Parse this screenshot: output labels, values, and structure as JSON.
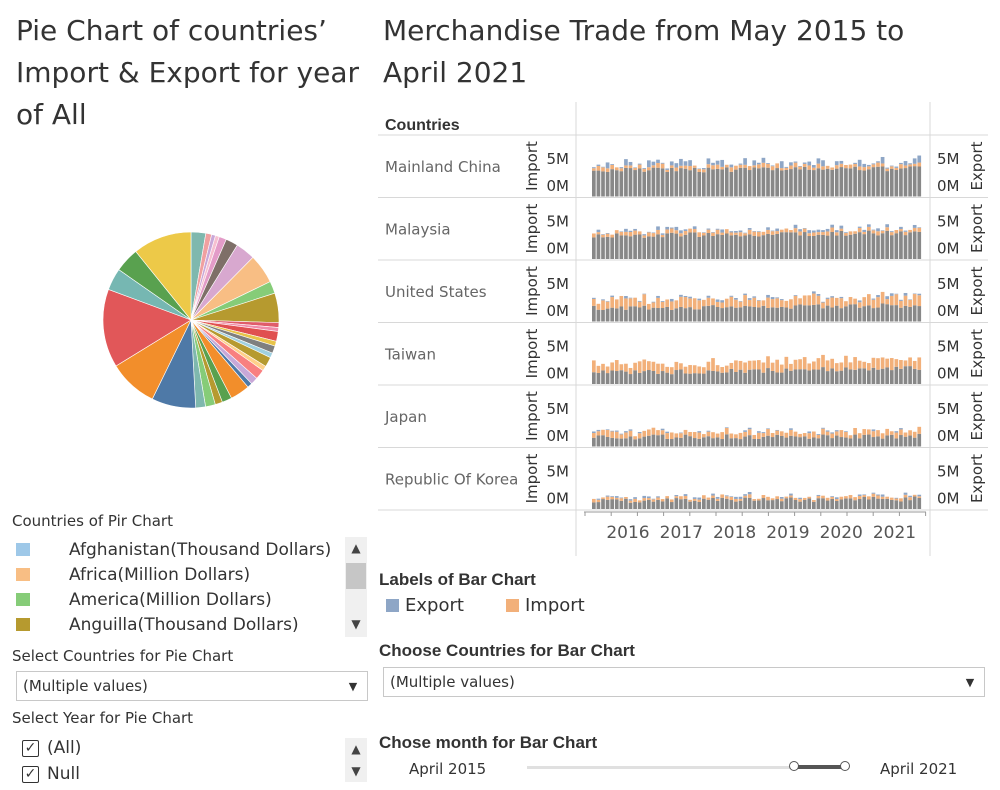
{
  "pie_title": [
    "Pie Chart of countries’",
    "Import & Export for year",
    "of All"
  ],
  "bar_title": [
    "Merchandise Trade from May 2015 to",
    "April 2021"
  ],
  "countries_header": "Countries",
  "rows": [
    {
      "label": "Mainland China",
      "seed": 1,
      "imp": 0.08,
      "exp": 0.12,
      "base": 0.62,
      "trend": 0.05
    },
    {
      "label": "Malaysia",
      "seed": 2,
      "imp": 0.08,
      "exp": 0.06,
      "base": 0.55,
      "trend": 0.08
    },
    {
      "label": "United States",
      "seed": 3,
      "imp": 0.2,
      "exp": 0.05,
      "base": 0.32,
      "trend": 0.06
    },
    {
      "label": "Taiwan",
      "seed": 4,
      "imp": 0.22,
      "exp": 0.0,
      "base": 0.26,
      "trend": 0.12
    },
    {
      "label": "Japan",
      "seed": 5,
      "imp": 0.12,
      "exp": 0.03,
      "base": 0.22,
      "trend": 0.03
    },
    {
      "label": "Republic Of Korea",
      "seed": 6,
      "imp": 0.06,
      "exp": 0.04,
      "base": 0.2,
      "trend": 0.04
    }
  ],
  "axis": {
    "left_title": "Import",
    "right_title": "Export",
    "tick_5m": "5M",
    "tick_0m": "0M",
    "years": [
      "2016",
      "2017",
      "2018",
      "2019",
      "2020",
      "2021"
    ]
  },
  "colors": {
    "export": "#8ea6c6",
    "import": "#f2b07a",
    "base": "#888888"
  },
  "pie_legend": {
    "title": "Countries of Pir Chart",
    "items": [
      {
        "label": "Afghanistan(Thousand Dollars)",
        "color": "#9ec8e8"
      },
      {
        "label": "Africa(Million Dollars)",
        "color": "#f8be84"
      },
      {
        "label": "America(Million Dollars)",
        "color": "#86cc78"
      },
      {
        "label": "Anguilla(Thousand Dollars)",
        "color": "#b69a2f"
      }
    ]
  },
  "pie_slices": [
    {
      "v": 3,
      "c": "#7fb8ae"
    },
    {
      "v": 1.2,
      "c": "#f0a0a0"
    },
    {
      "v": 0.8,
      "c": "#c9a7d8"
    },
    {
      "v": 0.8,
      "c": "#f6c0d0"
    },
    {
      "v": 1.5,
      "c": "#e39cc8"
    },
    {
      "v": 2.5,
      "c": "#7e6f68"
    },
    {
      "v": 4,
      "c": "#d8a8cf"
    },
    {
      "v": 6,
      "c": "#f8be84"
    },
    {
      "v": 2.5,
      "c": "#86cc78"
    },
    {
      "v": 6,
      "c": "#b69a2f"
    },
    {
      "v": 1,
      "c": "#e05c6a"
    },
    {
      "v": 0.8,
      "c": "#f08caa"
    },
    {
      "v": 2,
      "c": "#e05050"
    },
    {
      "v": 1,
      "c": "#e8c44a"
    },
    {
      "v": 1.5,
      "c": "#7f7f7f"
    },
    {
      "v": 1,
      "c": "#a0d0e0"
    },
    {
      "v": 2,
      "c": "#b69a2f"
    },
    {
      "v": 1,
      "c": "#ffd08a"
    },
    {
      "v": 2,
      "c": "#f88080"
    },
    {
      "v": 1.5,
      "c": "#c8a8d8"
    },
    {
      "v": 1,
      "c": "#4e79a7"
    },
    {
      "v": 4,
      "c": "#f28e2b"
    },
    {
      "v": 2,
      "c": "#59a14f"
    },
    {
      "v": 1.5,
      "c": "#b69a2f"
    },
    {
      "v": 2,
      "c": "#86cc78"
    },
    {
      "v": 2,
      "c": "#7fb8ae"
    },
    {
      "v": 9,
      "c": "#4e79a7"
    },
    {
      "v": 10,
      "c": "#f28e2b"
    },
    {
      "v": 16,
      "c": "#e15759"
    },
    {
      "v": 4.5,
      "c": "#76b7b2"
    },
    {
      "v": 5,
      "c": "#59a14f"
    },
    {
      "v": 12,
      "c": "#edc948"
    }
  ],
  "select_countries_pie": {
    "label": "Select Countries for Pie Chart",
    "value": "(Multiple values)"
  },
  "select_year_pie": {
    "label": "Select Year for Pie Chart",
    "options": [
      "(All)",
      "Null"
    ]
  },
  "bar_labels": {
    "title": "Labels of Bar Chart",
    "items": [
      {
        "label": "Export",
        "color": "#8ea6c6"
      },
      {
        "label": "Import",
        "color": "#f2b07a"
      }
    ]
  },
  "choose_countries_bar": {
    "label": "Choose Countries for Bar Chart",
    "value": "(Multiple values)"
  },
  "month_slider": {
    "label": "Chose month for Bar Chart",
    "start": "April 2015",
    "end": "April 2021"
  }
}
